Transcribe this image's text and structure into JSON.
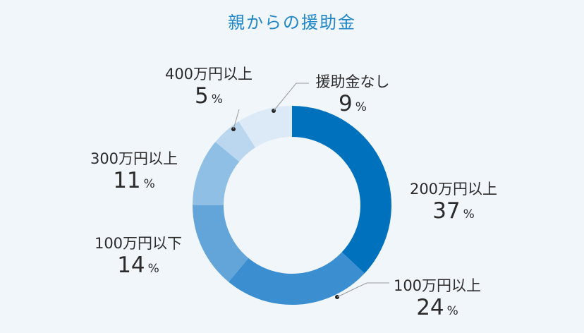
{
  "chart_data": {
    "type": "pie",
    "title": "親からの援助金",
    "categories": [
      "200万円以上",
      "100万円以上",
      "100万円以下",
      "300万円以上",
      "400万円以上",
      "援助金なし"
    ],
    "values": [
      37,
      24,
      14,
      11,
      5,
      9
    ],
    "unit": "%",
    "colors": [
      "#0071bd",
      "#3b8fd0",
      "#64a5d9",
      "#8fbfe4",
      "#bad7ef",
      "#dbeaf6"
    ]
  }
}
